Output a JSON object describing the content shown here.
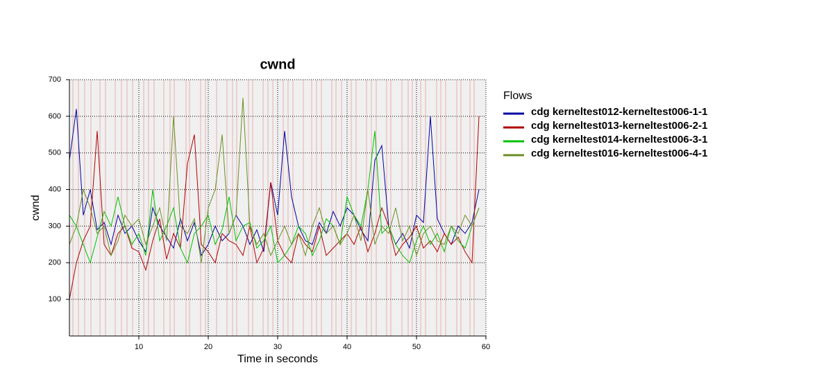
{
  "chart_data": {
    "type": "line",
    "title": "cwnd",
    "xlabel": "Time in seconds",
    "ylabel": "cwnd",
    "legend_title": "Flows",
    "legend": "right",
    "grid": true,
    "xlim": [
      0,
      60
    ],
    "xticks": [
      10,
      20,
      30,
      40,
      50,
      60
    ],
    "ylim": [
      0,
      700
    ],
    "yticks": [
      100,
      200,
      300,
      400,
      500,
      600,
      700
    ],
    "x": [
      0,
      1,
      2,
      3,
      4,
      5,
      6,
      7,
      8,
      9,
      10,
      11,
      12,
      13,
      14,
      15,
      16,
      17,
      18,
      19,
      20,
      21,
      22,
      23,
      24,
      25,
      26,
      27,
      28,
      29,
      30,
      31,
      32,
      33,
      34,
      35,
      36,
      37,
      38,
      39,
      40,
      41,
      42,
      43,
      44,
      45,
      46,
      47,
      48,
      49,
      50,
      51,
      52,
      53,
      54,
      55,
      56,
      57,
      58,
      59
    ],
    "event_color": "#e8b0b0",
    "events": [
      0.5,
      1.3,
      2.2,
      3.1,
      4.4,
      5.2,
      6.6,
      7.5,
      8.3,
      9.1,
      10.7,
      11.4,
      12.2,
      13.6,
      14.5,
      15.1,
      16.8,
      17.3,
      18.9,
      19.6,
      21.2,
      22.7,
      23.5,
      24.1,
      25.8,
      26.4,
      27.9,
      28.6,
      29.3,
      30.8,
      31.5,
      32.2,
      33.7,
      34.9,
      35.6,
      36.3,
      37.8,
      38.4,
      39.2,
      40.6,
      41.3,
      42.8,
      43.5,
      44.2,
      45.7,
      46.3,
      47.9,
      48.8,
      49.4,
      50.6,
      51.3,
      52.9,
      53.5,
      54.2,
      55.8,
      56.4,
      57.7,
      58.3
    ],
    "series": [
      {
        "name": "cdg kerneltest012-kerneltest006-1-1",
        "color": "#0000a0",
        "values": [
          480,
          620,
          330,
          400,
          290,
          310,
          250,
          330,
          280,
          300,
          260,
          230,
          350,
          300,
          270,
          240,
          320,
          260,
          310,
          220,
          250,
          300,
          260,
          280,
          330,
          300,
          250,
          290,
          230,
          420,
          330,
          560,
          380,
          300,
          260,
          250,
          310,
          280,
          340,
          300,
          350,
          330,
          290,
          260,
          480,
          520,
          300,
          250,
          280,
          240,
          330,
          310,
          600,
          320,
          280,
          250,
          300,
          280,
          310,
          400
        ]
      },
      {
        "name": "cdg kerneltest013-kerneltest006-2-1",
        "color": "#b00000",
        "values": [
          100,
          200,
          260,
          300,
          560,
          250,
          220,
          280,
          300,
          240,
          230,
          180,
          260,
          320,
          210,
          280,
          240,
          470,
          550,
          250,
          230,
          200,
          280,
          260,
          250,
          220,
          300,
          200,
          240,
          420,
          260,
          220,
          200,
          280,
          250,
          230,
          300,
          220,
          240,
          260,
          280,
          250,
          300,
          230,
          280,
          350,
          300,
          220,
          250,
          270,
          300,
          240,
          260,
          230,
          280,
          250,
          270,
          230,
          200,
          600
        ]
      },
      {
        "name": "cdg kerneltest014-kerneltest006-3-1",
        "color": "#00c000",
        "values": [
          330,
          300,
          250,
          200,
          270,
          340,
          300,
          380,
          300,
          250,
          280,
          220,
          400,
          260,
          300,
          350,
          240,
          200,
          280,
          300,
          330,
          250,
          290,
          380,
          260,
          300,
          310,
          240,
          260,
          300,
          200,
          220,
          250,
          300,
          280,
          220,
          260,
          320,
          300,
          250,
          380,
          330,
          300,
          400,
          560,
          280,
          300,
          250,
          220,
          200,
          260,
          300,
          250,
          280,
          230,
          300,
          260,
          240,
          300,
          350
        ]
      },
      {
        "name": "cdg kerneltest016-kerneltest006-4-1",
        "color": "#6b8e23",
        "values": [
          250,
          300,
          400,
          350,
          280,
          300,
          220,
          260,
          330,
          300,
          320,
          250,
          300,
          350,
          260,
          600,
          300,
          280,
          320,
          200,
          350,
          400,
          550,
          280,
          330,
          650,
          300,
          250,
          280,
          220,
          260,
          300,
          250,
          280,
          220,
          300,
          350,
          280,
          300,
          250,
          280,
          330,
          260,
          400,
          250,
          300,
          280,
          350,
          260,
          300,
          220,
          280,
          300,
          260,
          250,
          300,
          280,
          330,
          300,
          350
        ]
      }
    ]
  }
}
